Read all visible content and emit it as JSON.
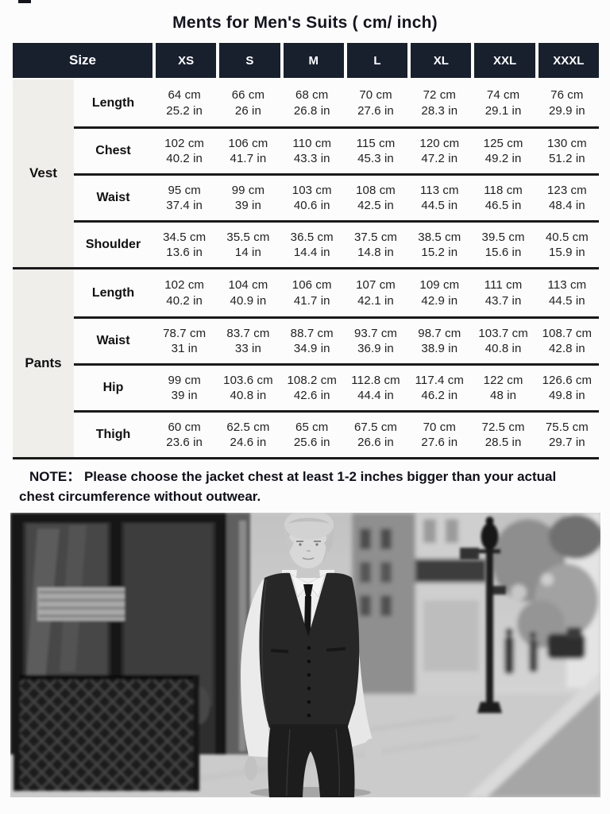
{
  "page": {
    "title": "Ments for Men's Suits ( cm/ inch)"
  },
  "table": {
    "size_header": "Size",
    "sizes": [
      "XS",
      "S",
      "M",
      "L",
      "XL",
      "XXL",
      "XXXL"
    ],
    "sections": [
      {
        "name": "Vest",
        "rows": [
          {
            "label": "Length",
            "cells": [
              [
                "64 cm",
                "25.2 in"
              ],
              [
                "66 cm",
                "26 in"
              ],
              [
                "68 cm",
                "26.8 in"
              ],
              [
                "70 cm",
                "27.6 in"
              ],
              [
                "72 cm",
                "28.3 in"
              ],
              [
                "74 cm",
                "29.1 in"
              ],
              [
                "76 cm",
                "29.9 in"
              ]
            ]
          },
          {
            "label": "Chest",
            "cells": [
              [
                "102 cm",
                "40.2 in"
              ],
              [
                "106 cm",
                "41.7 in"
              ],
              [
                "110 cm",
                "43.3 in"
              ],
              [
                "115 cm",
                "45.3 in"
              ],
              [
                "120 cm",
                "47.2 in"
              ],
              [
                "125 cm",
                "49.2 in"
              ],
              [
                "130 cm",
                "51.2 in"
              ]
            ]
          },
          {
            "label": "Waist",
            "cells": [
              [
                "95 cm",
                "37.4 in"
              ],
              [
                "99 cm",
                "39 in"
              ],
              [
                "103 cm",
                "40.6 in"
              ],
              [
                "108 cm",
                "42.5 in"
              ],
              [
                "113 cm",
                "44.5 in"
              ],
              [
                "118 cm",
                "46.5 in"
              ],
              [
                "123 cm",
                "48.4 in"
              ]
            ]
          },
          {
            "label": "Shoulder",
            "cells": [
              [
                "34.5 cm",
                "13.6 in"
              ],
              [
                "35.5 cm",
                "14 in"
              ],
              [
                "36.5 cm",
                "14.4 in"
              ],
              [
                "37.5 cm",
                "14.8 in"
              ],
              [
                "38.5 cm",
                "15.2 in"
              ],
              [
                "39.5 cm",
                "15.6 in"
              ],
              [
                "40.5 cm",
                "15.9 in"
              ]
            ]
          }
        ]
      },
      {
        "name": "Pants",
        "rows": [
          {
            "label": "Length",
            "cells": [
              [
                "102 cm",
                "40.2 in"
              ],
              [
                "104 cm",
                "40.9 in"
              ],
              [
                "106 cm",
                "41.7 in"
              ],
              [
                "107 cm",
                "42.1 in"
              ],
              [
                "109 cm",
                "42.9 in"
              ],
              [
                "111 cm",
                "43.7 in"
              ],
              [
                "113 cm",
                "44.5 in"
              ]
            ]
          },
          {
            "label": "Waist",
            "cells": [
              [
                "78.7 cm",
                "31 in"
              ],
              [
                "83.7 cm",
                "33 in"
              ],
              [
                "88.7 cm",
                "34.9 in"
              ],
              [
                "93.7 cm",
                "36.9 in"
              ],
              [
                "98.7 cm",
                "38.9 in"
              ],
              [
                "103.7 cm",
                "40.8 in"
              ],
              [
                "108.7 cm",
                "42.8 in"
              ]
            ]
          },
          {
            "label": "Hip",
            "cells": [
              [
                "99 cm",
                "39 in"
              ],
              [
                "103.6 cm",
                "40.8 in"
              ],
              [
                "108.2 cm",
                "42.6 in"
              ],
              [
                "112.8 cm",
                "44.4 in"
              ],
              [
                "117.4 cm",
                "46.2 in"
              ],
              [
                "122 cm",
                "48 in"
              ],
              [
                "126.6 cm",
                "49.8 in"
              ]
            ]
          },
          {
            "label": "Thigh",
            "cells": [
              [
                "60 cm",
                "23.6 in"
              ],
              [
                "62.5 cm",
                "24.6 in"
              ],
              [
                "65 cm",
                "25.6 in"
              ],
              [
                "67.5 cm",
                "26.6 in"
              ],
              [
                "70 cm",
                "27.6 in"
              ],
              [
                "72.5 cm",
                "28.5 in"
              ],
              [
                "75.5 cm",
                "29.7 in"
              ]
            ]
          }
        ]
      }
    ]
  },
  "note": {
    "text": "NOTE： Please choose the jacket chest at least 1-2  inches bigger than your actual chest circumference without outwear."
  },
  "photo": {
    "alt": "Black and white photo of a man wearing a dark suit vest, white shirt and tie walking along a city street"
  },
  "colors": {
    "header_bg": "#18202e",
    "header_text": "#ffffff",
    "row_line": "#1a1a1a",
    "category_bg": "#efeeeb",
    "page_bg": "#fcfcfc",
    "text": "#1f1f1f"
  }
}
